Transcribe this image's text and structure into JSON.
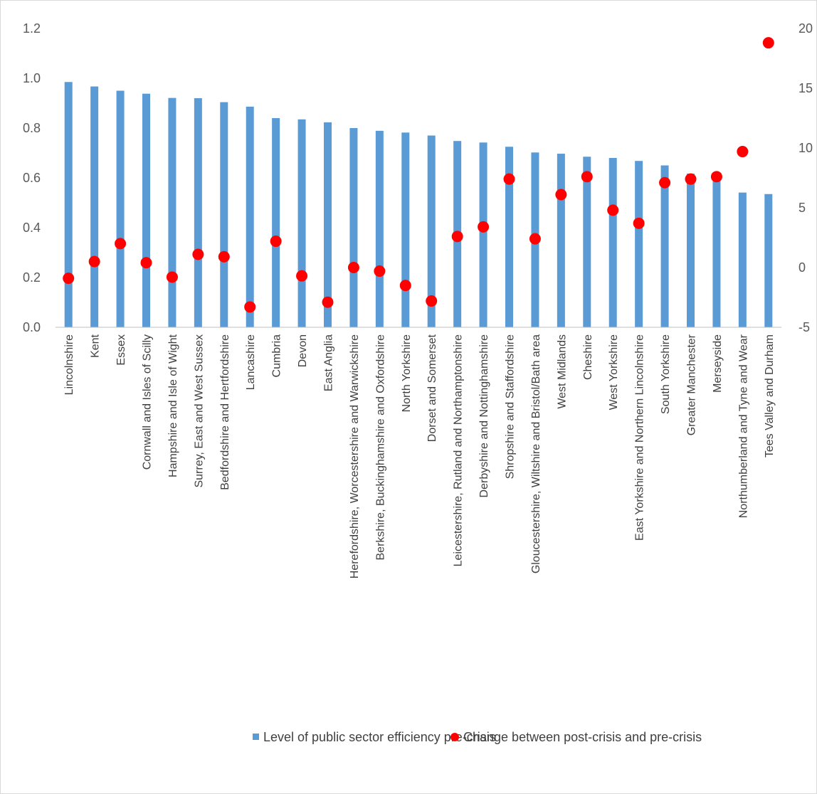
{
  "chart_data": {
    "type": "bar",
    "categories": [
      "Lincolnshire",
      "Kent",
      "Essex",
      "Cornwall and Isles of Scilly",
      "Hampshire and Isle of Wight",
      "Surrey, East and West Sussex",
      "Bedfordshire and Hertfordshire",
      "Lancashire",
      "Cumbria",
      "Devon",
      "East Anglia",
      "Herefordshire, Worcestershire and Warwickshire",
      "Berkshire, Buckinghamshire and Oxfordshire",
      "North Yorkshire",
      "Dorset and Somerset",
      "Leicestershire, Rutland and Northamptonshire",
      "Derbyshire and Nottinghamshire",
      "Shropshire and Staffordshire",
      "Gloucestershire, Wiltshire and Bristol/Bath area",
      "West Midlands",
      "Cheshire",
      "West Yorkshire",
      "East Yorkshire and Northern Lincolnshire",
      "South Yorkshire",
      "Greater Manchester",
      "Merseyside",
      "Northumberland and Tyne and Wear",
      "Tees Valley and Durham"
    ],
    "series": [
      {
        "name": "Level of public sector efficiency pre-crisis",
        "type": "bar",
        "axis": "left",
        "color": "#5b9bd5",
        "values": [
          0.985,
          0.967,
          0.95,
          0.938,
          0.921,
          0.92,
          0.904,
          0.886,
          0.84,
          0.835,
          0.823,
          0.8,
          0.789,
          0.782,
          0.77,
          0.748,
          0.742,
          0.725,
          0.702,
          0.697,
          0.685,
          0.68,
          0.668,
          0.65,
          0.617,
          0.612,
          0.541,
          0.535
        ]
      },
      {
        "name": "Change between post-crisis and pre-crisis",
        "type": "scatter",
        "axis": "right",
        "color": "#ff0000",
        "values": [
          -0.9,
          0.5,
          2.0,
          0.4,
          -0.8,
          1.1,
          0.9,
          -3.3,
          2.2,
          -0.7,
          -2.9,
          0.0,
          -0.3,
          -1.5,
          -2.8,
          2.6,
          3.4,
          7.4,
          2.4,
          6.1,
          7.6,
          4.8,
          3.7,
          7.1,
          7.4,
          7.6,
          9.7,
          18.8
        ]
      }
    ],
    "y_left": {
      "min": 0.0,
      "max": 1.2,
      "ticks": [
        "0.0",
        "0.2",
        "0.4",
        "0.6",
        "0.8",
        "1.0",
        "1.2"
      ]
    },
    "y_right": {
      "min": -5,
      "max": 20,
      "ticks": [
        "-5",
        "0",
        "5",
        "10",
        "15",
        "20"
      ]
    },
    "grid": false,
    "legend_position": "bottom"
  }
}
